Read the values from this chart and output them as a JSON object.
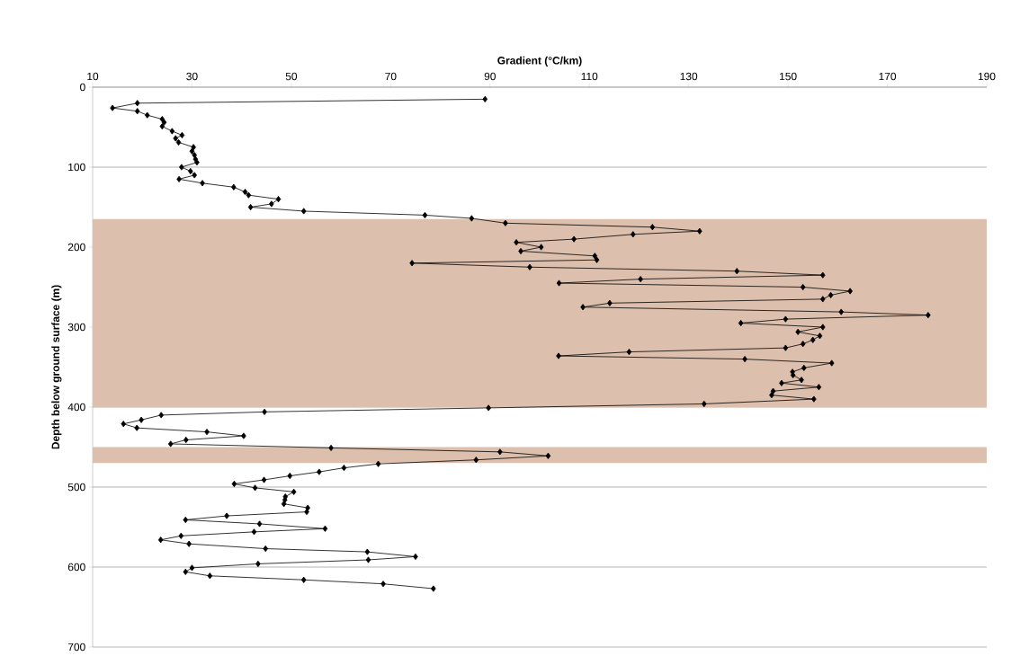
{
  "chart_data": {
    "type": "line",
    "xlabel": "Gradient (°C/km)",
    "ylabel": "Depth below ground surface (m)",
    "xlim": [
      10,
      190
    ],
    "xticks": [
      10,
      30,
      50,
      70,
      90,
      110,
      130,
      150,
      170,
      190
    ],
    "ylim": [
      700,
      0
    ],
    "yticks": [
      0,
      100,
      200,
      300,
      400,
      500,
      600,
      700
    ],
    "grid": "y",
    "marker": "diamond",
    "line_style": "solid",
    "bands": [
      {
        "axis": "y",
        "from": 165,
        "to": 400,
        "color": "#dcbfac"
      },
      {
        "axis": "y",
        "from": 450,
        "to": 470,
        "color": "#dcbfac"
      }
    ],
    "series": [
      {
        "color": "#000000",
        "x": [
          89,
          19,
          14,
          19,
          21,
          24,
          24.4,
          24,
          26,
          28,
          26.7,
          27.3,
          30.3,
          30,
          30.5,
          30.7,
          31,
          27.9,
          29.7,
          30.5,
          27.4,
          32.1,
          38.4,
          40.7,
          41.4,
          47.4,
          46,
          41.8,
          52.5,
          76.9,
          86.3,
          93.1,
          122.7,
          132.2,
          118.8,
          106.9,
          95.3,
          100.3,
          96.2,
          111.1,
          111.5,
          74.3,
          98,
          139.7,
          157,
          120.3,
          103.9,
          153,
          162.5,
          158.6,
          157,
          114.1,
          108.7,
          160.7,
          178.2,
          149.5,
          140.5,
          157,
          152,
          156.4,
          155,
          153,
          149.5,
          118,
          103.8,
          141.3,
          158.8,
          153.2,
          150.9,
          151,
          152.7,
          148.7,
          156.2,
          147,
          146.7,
          155.2,
          133.1,
          89.7,
          44.6,
          23.8,
          19.8,
          16.2,
          18.9,
          33,
          40.4,
          28.8,
          25.7,
          58,
          92,
          101.7,
          87.2,
          67.5,
          60.6,
          55.6,
          49.7,
          44.5,
          38.5,
          42.7,
          50.5,
          48.8,
          48.7,
          48.5,
          53.3,
          53.1,
          37,
          28.7,
          43.6,
          56.8,
          42.5,
          27.8,
          23.7,
          29.4,
          44.8,
          65.3,
          75,
          65.5,
          43.3,
          30,
          28.7,
          33.6,
          52.5,
          68.5,
          78.6
        ],
        "values": [
          15,
          20,
          26,
          30,
          35,
          40,
          44,
          49,
          55,
          60,
          64,
          69,
          75,
          80,
          85,
          90,
          94,
          100,
          105,
          110,
          115,
          120,
          125,
          131,
          135,
          140,
          146,
          150,
          155,
          160,
          164,
          170,
          175,
          180,
          184,
          190,
          194,
          200,
          205,
          211,
          216,
          220,
          225,
          230,
          235,
          240,
          245,
          250,
          255,
          260,
          265,
          270,
          275,
          281,
          285,
          290,
          295,
          300,
          306,
          311,
          316,
          321,
          326,
          331,
          336,
          340,
          345,
          351,
          356,
          360,
          366,
          370,
          375,
          380,
          385,
          390,
          396,
          401,
          406,
          410,
          416,
          421,
          426,
          431,
          436,
          441,
          446,
          451,
          456,
          461,
          466,
          471,
          476,
          481,
          486,
          491,
          496,
          501,
          506,
          512,
          516,
          521,
          526,
          531,
          536,
          541,
          546,
          552,
          556,
          561,
          566,
          571,
          577,
          581,
          587,
          591,
          596,
          601,
          606,
          611,
          616,
          621,
          627
        ]
      }
    ]
  }
}
